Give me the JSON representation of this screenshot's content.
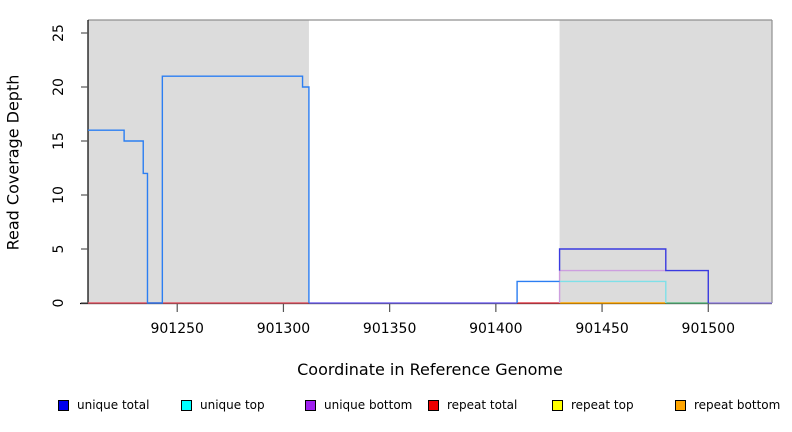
{
  "chart_data": {
    "type": "line",
    "step": true,
    "title": "",
    "xlabel": "Coordinate in Reference Genome",
    "ylabel": "Read Coverage Depth",
    "xlim": [
      901208,
      901530
    ],
    "ylim": [
      0,
      25
    ],
    "x_ticks": [
      "901250",
      "901300",
      "901350",
      "901400",
      "901450",
      "901500"
    ],
    "y_ticks": [
      "0",
      "5",
      "10",
      "15",
      "20",
      "25"
    ],
    "grid": false,
    "legend_position": "bottom",
    "shade_color": "#DCDCDC",
    "box_color": "#909090",
    "axis_color": "#000000",
    "tick_color": "#555555",
    "shaded_regions": [
      {
        "from": 901208,
        "to": 901312
      },
      {
        "from": 901430,
        "to": 901530
      }
    ],
    "series": [
      {
        "name": "unique total",
        "color": "#0000EE",
        "steps": [
          [
            901208,
            16
          ],
          [
            901225,
            15
          ],
          [
            901234,
            12
          ],
          [
            901236,
            0
          ],
          [
            901243,
            21
          ],
          [
            901309,
            20
          ],
          [
            901312,
            0
          ],
          [
            901410,
            2
          ],
          [
            901430,
            5
          ],
          [
            901480,
            3
          ],
          [
            901500,
            0
          ],
          [
            901530,
            0
          ]
        ]
      },
      {
        "name": "unique top",
        "color": "#00FFFF",
        "steps": [
          [
            901208,
            16
          ],
          [
            901225,
            15
          ],
          [
            901234,
            12
          ],
          [
            901236,
            0
          ],
          [
            901243,
            21
          ],
          [
            901309,
            20
          ],
          [
            901312,
            0
          ],
          [
            901410,
            2
          ],
          [
            901430,
            2
          ],
          [
            901480,
            0
          ],
          [
            901530,
            0
          ]
        ]
      },
      {
        "name": "unique bottom",
        "color": "#A020F0",
        "steps": [
          [
            901208,
            0
          ],
          [
            901430,
            3
          ],
          [
            901500,
            0
          ],
          [
            901530,
            0
          ]
        ]
      },
      {
        "name": "repeat total",
        "color": "#EE0000",
        "steps": [
          [
            901208,
            0
          ],
          [
            901530,
            0
          ]
        ]
      },
      {
        "name": "repeat top",
        "color": "#FFFF00",
        "steps": [
          [
            901208,
            0
          ],
          [
            901530,
            0
          ]
        ]
      },
      {
        "name": "repeat bottom",
        "color": "#FFA500",
        "steps": [
          [
            901208,
            0
          ],
          [
            901530,
            0
          ]
        ]
      }
    ],
    "rendered_lines": [
      {
        "name": "baseline-repeat-left",
        "color": "#E05A68",
        "pts": [
          [
            901208,
            0
          ],
          [
            901312,
            0
          ]
        ]
      },
      {
        "name": "baseline-unique-middle",
        "color": "#7A6CF0",
        "pts": [
          [
            901312,
            0
          ],
          [
            901410,
            0
          ]
        ]
      },
      {
        "name": "baseline-repeat-mid",
        "color": "#E04550",
        "pts": [
          [
            901410,
            0
          ],
          [
            901430,
            0
          ]
        ]
      },
      {
        "name": "baseline-repeat-bottom",
        "color": "#FFA500",
        "pts": [
          [
            901430,
            0
          ],
          [
            901480,
            0
          ]
        ]
      },
      {
        "name": "baseline-top-drop",
        "color": "#63BB85",
        "pts": [
          [
            901480,
            0
          ],
          [
            901500,
            0
          ]
        ]
      },
      {
        "name": "baseline-unique-right",
        "color": "#9A8AE2",
        "pts": [
          [
            901500,
            0
          ],
          [
            901530,
            0
          ]
        ]
      },
      {
        "name": "unique-bottom-step",
        "color": "#CD9FDF",
        "pts": [
          [
            901430,
            0
          ],
          [
            901430,
            3
          ],
          [
            901480,
            3
          ]
        ]
      },
      {
        "name": "unique-top-step",
        "color": "#7FE0E8",
        "pts": [
          [
            901430,
            2
          ],
          [
            901480,
            2
          ],
          [
            901480,
            0
          ]
        ]
      },
      {
        "name": "unique-total-top-left",
        "color": "#2B7EF2",
        "pts": [
          [
            901208,
            16
          ],
          [
            901225,
            16
          ],
          [
            901225,
            15
          ],
          [
            901234,
            15
          ],
          [
            901234,
            12
          ],
          [
            901236,
            12
          ],
          [
            901236,
            0
          ],
          [
            901243,
            0
          ],
          [
            901243,
            21
          ],
          [
            901309,
            21
          ],
          [
            901309,
            20
          ],
          [
            901312,
            20
          ],
          [
            901312,
            0
          ]
        ]
      },
      {
        "name": "unique-total-top-rise",
        "color": "#2B7EF2",
        "pts": [
          [
            901410,
            0
          ],
          [
            901410,
            2
          ],
          [
            901430,
            2
          ]
        ]
      },
      {
        "name": "unique-total-right",
        "color": "#3A3AE0",
        "pts": [
          [
            901430,
            3
          ],
          [
            901430,
            5
          ],
          [
            901480,
            5
          ],
          [
            901480,
            3
          ],
          [
            901500,
            3
          ],
          [
            901500,
            0
          ]
        ]
      }
    ]
  },
  "legend": {
    "items": [
      {
        "label": "unique total",
        "color": "#0000EE"
      },
      {
        "label": "unique top",
        "color": "#00FFFF"
      },
      {
        "label": "unique bottom",
        "color": "#A020F0"
      },
      {
        "label": "repeat total",
        "color": "#EE0000"
      },
      {
        "label": "repeat top",
        "color": "#FFFF00"
      },
      {
        "label": "repeat bottom",
        "color": "#FFA500"
      }
    ]
  }
}
